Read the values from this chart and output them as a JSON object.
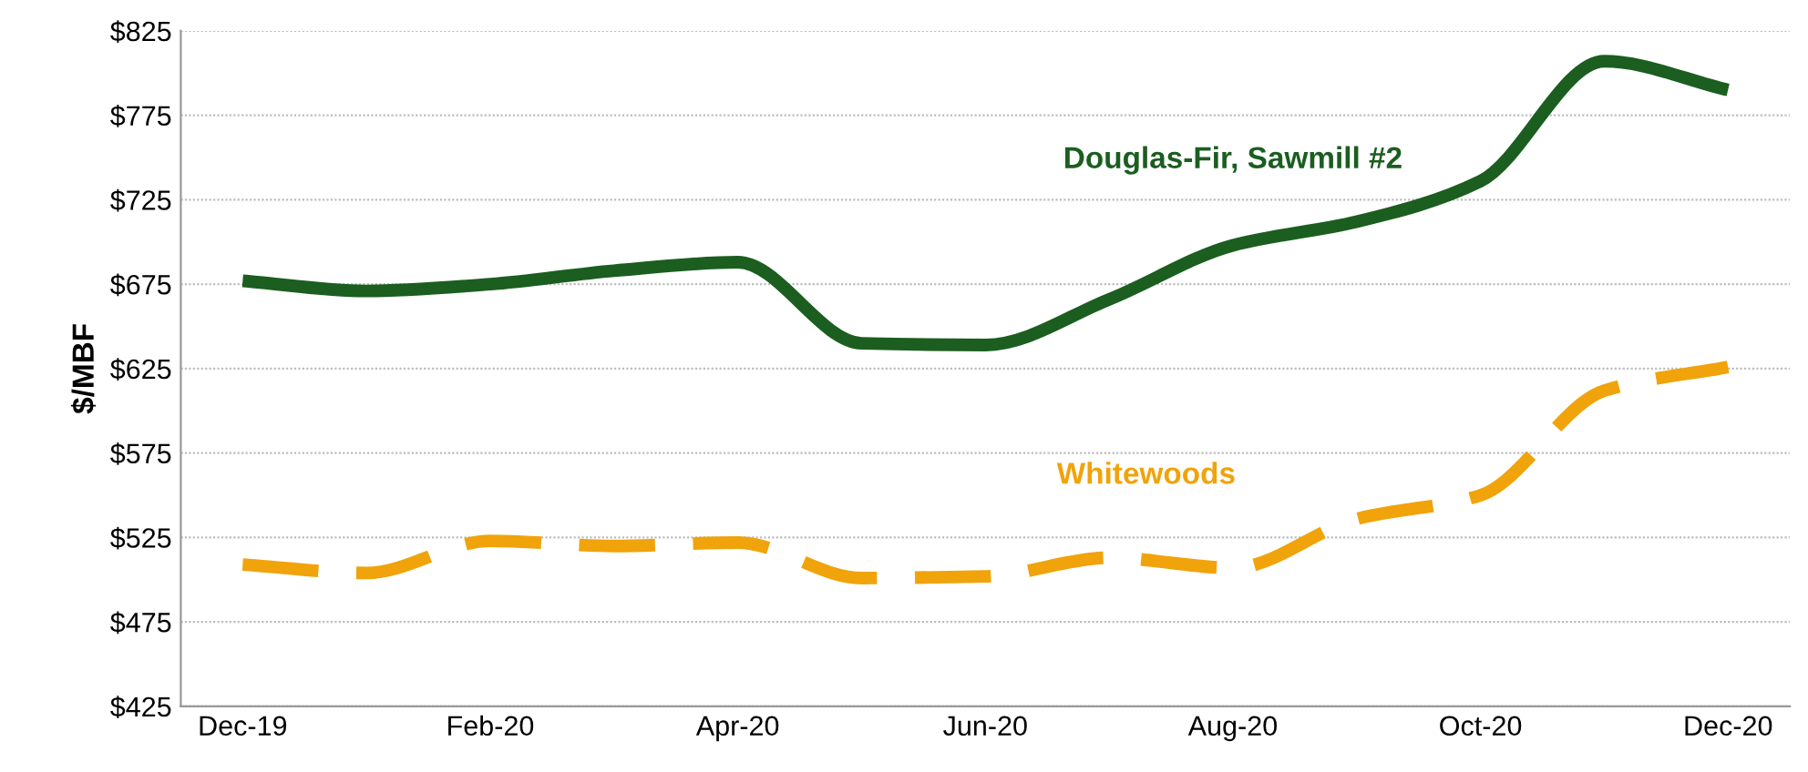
{
  "chart_data": {
    "type": "line",
    "ylabel": "$/MBF",
    "categories": [
      "Dec-19",
      null,
      "Feb-20",
      null,
      "Apr-20",
      null,
      "Jun-20",
      null,
      "Aug-20",
      null,
      "Oct-20",
      null,
      "Dec-20"
    ],
    "series": [
      {
        "name": "Douglas-Fir, Sawmill #2",
        "color": "#1b5e20",
        "line_style": "solid",
        "values": [
          677,
          671,
          675,
          683,
          688,
          640,
          639,
          666,
          698,
          712,
          736,
          807,
          790
        ]
      },
      {
        "name": "Whitewoods",
        "color": "#f0a30a",
        "line_style": "dashed",
        "values": [
          509,
          504,
          523,
          520,
          522,
          501,
          502,
          513,
          507,
          536,
          550,
          612,
          626
        ]
      }
    ],
    "ylim": [
      425,
      825
    ],
    "yticks": [
      {
        "value": 425,
        "label": "$425"
      },
      {
        "value": 475,
        "label": "$475"
      },
      {
        "value": 525,
        "label": "$525"
      },
      {
        "value": 575,
        "label": "$575"
      },
      {
        "value": 625,
        "label": "$625"
      },
      {
        "value": 675,
        "label": "$675"
      },
      {
        "value": 725,
        "label": "$725"
      },
      {
        "value": 775,
        "label": "$775"
      },
      {
        "value": 825,
        "label": "$825"
      }
    ],
    "grid": "y",
    "legend": false,
    "marker": "none"
  }
}
